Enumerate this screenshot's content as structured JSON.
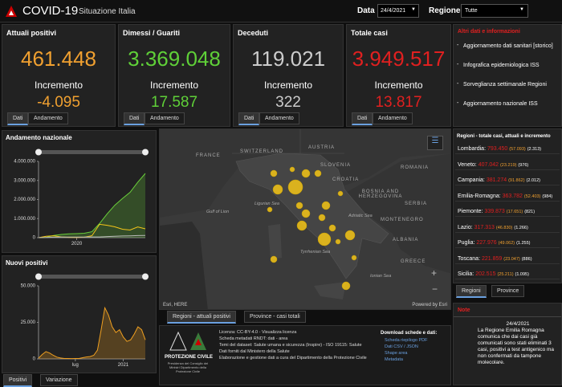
{
  "header": {
    "title": "COVID-19",
    "subtitle": "Situazione Italia",
    "date_label": "Data",
    "date_value": "24/4/2021",
    "region_label": "Regione",
    "region_value": "Tutte"
  },
  "kpis": [
    {
      "label": "Attuali positivi",
      "value": "461.448",
      "increment_label": "Incremento",
      "increment": "-4.095",
      "color": "#f0a030",
      "tabs": [
        "Dati",
        "Andamento"
      ]
    },
    {
      "label": "Dimessi / Guariti",
      "value": "3.369.048",
      "increment_label": "Incremento",
      "increment": "17.587",
      "color": "#5fd038",
      "tabs": [
        "Dati",
        "Andamento"
      ]
    },
    {
      "label": "Deceduti",
      "value": "119.021",
      "increment_label": "Incremento",
      "increment": "322",
      "color": "#cccccc",
      "tabs": [
        "Dati",
        "Andamento"
      ]
    },
    {
      "label": "Totale casi",
      "value": "3.949.517",
      "increment_label": "Incremento",
      "increment": "13.817",
      "color": "#e02020",
      "tabs": [
        "Dati",
        "Andamento"
      ]
    }
  ],
  "links": {
    "title": "Altri dati e informazioni",
    "items": [
      "Aggiornamento dati sanitari [storico]",
      "Infografica epidemiologica ISS",
      "Sorveglianza settimanale Regioni",
      "Aggiornamento nazionale ISS"
    ]
  },
  "charts": [
    {
      "type": "line",
      "title": "Andamento nazionale",
      "categories": [
        null,
        null,
        null,
        null,
        null,
        "2020",
        null,
        null,
        null,
        null,
        null,
        null,
        null,
        null,
        null
      ],
      "series": [
        {
          "color": "#6ad03a",
          "area": true,
          "values": [
            0,
            15000,
            120000,
            170000,
            200000,
            210000,
            230000,
            310000,
            740000,
            1250000,
            1700000,
            2050000,
            2380000,
            2900000,
            3369048
          ]
        },
        {
          "color": "#f5c518",
          "values": [
            1000,
            77000,
            100000,
            40000,
            15000,
            14000,
            25000,
            100000,
            700000,
            650000,
            570000,
            440000,
            400000,
            560000,
            461448
          ]
        },
        {
          "color": "#bbbbbb",
          "values": [
            0,
            12000,
            27000,
            33000,
            34700,
            35000,
            35400,
            35900,
            39000,
            57000,
            74000,
            88000,
            97000,
            108000,
            119021
          ]
        }
      ],
      "ylim": [
        0,
        4000000
      ],
      "yticks": [
        0,
        {
          "value": 1000000,
          "label": "1.000.000"
        },
        {
          "value": 2000000,
          "label": "2.000.000"
        },
        {
          "value": 3000000,
          "label": "3.000.000"
        },
        {
          "value": 4000000,
          "label": "4.000.000"
        }
      ]
    },
    {
      "type": "line",
      "title": "Nuovi positivi",
      "categories": [
        null,
        null,
        null,
        null,
        null,
        null,
        null,
        null,
        null,
        null,
        "lug",
        null,
        null,
        null,
        null,
        null,
        null,
        null,
        null,
        null,
        null,
        null,
        null,
        "2021",
        null,
        null,
        null,
        null,
        null,
        null
      ],
      "series": [
        {
          "color": "#f0a020",
          "area": true,
          "values": [
            500,
            3000,
            5000,
            4000,
            2500,
            1200,
            600,
            300,
            250,
            200,
            250,
            300,
            800,
            1300,
            1600,
            2500,
            6000,
            20000,
            35000,
            30000,
            22000,
            18000,
            20000,
            15000,
            12000,
            13000,
            17000,
            22000,
            20000,
            13000
          ]
        }
      ],
      "ylim": [
        0,
        50000
      ],
      "yticks": [
        0,
        {
          "value": 25000,
          "label": "25.000"
        },
        {
          "value": 50000,
          "label": "50.000"
        }
      ]
    }
  ],
  "chart_tabs": [
    "Positivi",
    "Variazione"
  ],
  "map": {
    "labels": [
      "FRANCE",
      "SWITZERLAND",
      "AUSTRIA",
      "SLOVENIA",
      "CROATIA",
      "BOSNIA AND HERZEGOVINA",
      "SERBIA",
      "ROMANIA",
      "MONTENEGRO",
      "ALBANIA",
      "GREECE",
      "Ligurian Sea",
      "Gulf of Lion",
      "Adriatic Sea",
      "Tyrrhenian Sea",
      "Ionian Sea"
    ],
    "attribution": "Esri, HERE",
    "powered": "Powered by Esri",
    "tabs": [
      "Regioni - attuali positivi",
      "Province - casi totali"
    ]
  },
  "regions": {
    "title": "Regioni - totale casi, attuali e incremento",
    "rows": [
      {
        "name": "Lombardia:",
        "total": "793.450",
        "active": "(57.093)",
        "increment": "(2.313)"
      },
      {
        "name": "Veneto:",
        "total": "407.042",
        "active": "(23.219)",
        "increment": "(976)"
      },
      {
        "name": "Campania:",
        "total": "381.274",
        "active": "(91.862)",
        "increment": "(2.012)"
      },
      {
        "name": "Emilia-Romagna:",
        "total": "363.782",
        "active": "(52.403)",
        "increment": "(984)"
      },
      {
        "name": "Piemonte:",
        "total": "339.873",
        "active": "(17.651)",
        "increment": "(821)"
      },
      {
        "name": "Lazio:",
        "total": "317.313",
        "active": "(46.830)",
        "increment": "(1.266)"
      },
      {
        "name": "Puglia:",
        "total": "227.976",
        "active": "(49.062)",
        "increment": "(1.255)"
      },
      {
        "name": "Toscana:",
        "total": "221.859",
        "active": "(23.047)",
        "increment": "(886)"
      },
      {
        "name": "Sicilia:",
        "total": "202.515",
        "active": "(25.211)",
        "increment": "(1.095)"
      }
    ],
    "tabs": [
      "Regioni",
      "Province"
    ]
  },
  "info": {
    "logo": "PROTEZIONE CIVILE",
    "logo_sub": "Presidenza del Consiglio dei Ministri Dipartimento della Protezione Civile",
    "lines": [
      "Licenza: CC-BY-4.0 - Visualizza licenza",
      "Scheda metadati RNDT: dati - area",
      "Temi del dataset: Salute umana e sicurezza (Inspire) - ISO 19115: Salute",
      "Dati forniti dal Ministero della Salute",
      "Elaborazione e gestione dati a cura del Dipartimento della Protezione Civile"
    ],
    "download_title": "Download schede e dati:",
    "downloads": [
      "Scheda riepilogo PDF",
      "Dati CSV / JSON",
      "Shape area",
      "Metadata"
    ]
  },
  "note": {
    "title": "Note",
    "date": "24/4/2021",
    "text": "La Regione Emilia Romagna comunica che dai casi già comunicati sono stati eliminati 3 casi, positivi a test antigenico ma non confermati da tampone molecolare."
  }
}
